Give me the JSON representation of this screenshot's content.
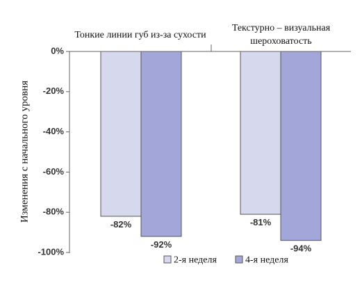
{
  "chart_data": {
    "type": "bar",
    "categories": [
      "Тонкие линии губ из-за сухости",
      [
        "Текстурно – визуальная",
        "шероховатость"
      ]
    ],
    "series": [
      {
        "name": "2-я неделя",
        "values": [
          -82,
          -81
        ],
        "value_labels": [
          "-82%",
          "-81%"
        ],
        "color": "#d6d8ee"
      },
      {
        "name": "4-я неделя",
        "values": [
          -92,
          -94
        ],
        "value_labels": [
          "-92%",
          "-94%"
        ],
        "color": "#a2a6d8"
      }
    ],
    "ylabel": "Изменения с начального уровня",
    "ylim": [
      -100,
      0
    ],
    "yticks": [
      0,
      -20,
      -40,
      -60,
      -80,
      -100
    ],
    "ytick_labels": [
      "0%",
      "-20%",
      "-40%",
      "-60%",
      "-80%",
      "-100%"
    ],
    "legend_position": "bottom",
    "grid": false,
    "bar_outline_color": "#555555"
  }
}
